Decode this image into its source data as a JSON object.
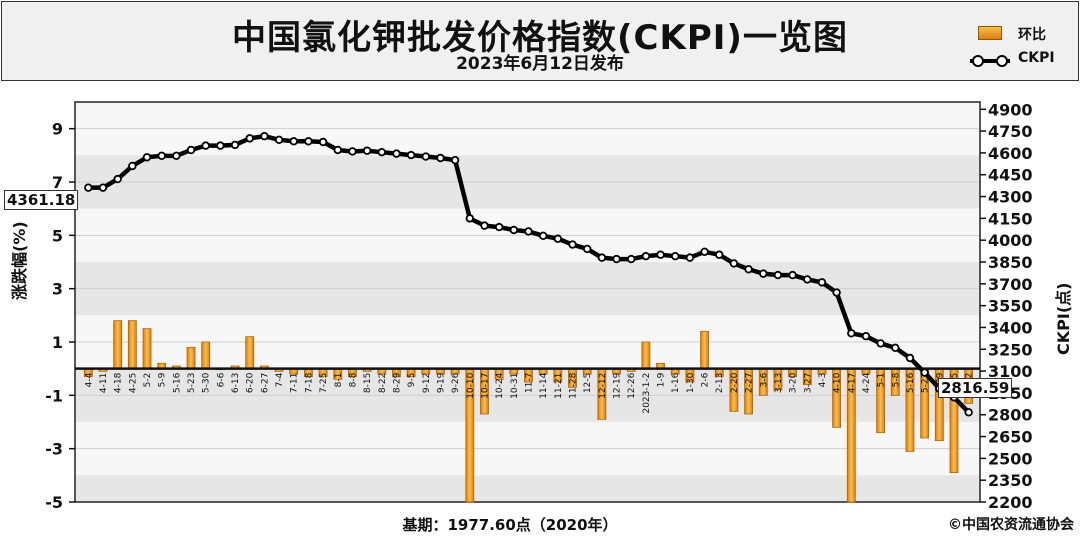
{
  "header": {
    "title": "中国氯化钾批发价格指数(CKPI)一览图",
    "subtitle": "2023年6月12日发布",
    "legend": {
      "bar_label": "环比",
      "line_label": "CKPI"
    }
  },
  "footer": {
    "base_note": "基期：1977.60点（2020年）",
    "copyright": "©中国农资流通协会"
  },
  "callouts": {
    "start_value": "4361.18",
    "end_value": "2816.59"
  },
  "chart_data": {
    "type": "bar+line",
    "left_axis": {
      "label": "涨跌幅(%)",
      "ylim": [
        -5,
        10
      ],
      "ticks": [
        9,
        7,
        5,
        3,
        1,
        -1,
        -3,
        -5
      ]
    },
    "right_axis": {
      "label": "CKPI(点)",
      "ylim": [
        2200,
        4950
      ],
      "ticks": [
        4900,
        4750,
        4600,
        4450,
        4300,
        4150,
        4000,
        3850,
        3700,
        3550,
        3400,
        3250,
        3100,
        2950,
        2800,
        2650,
        2500,
        2350,
        2200
      ]
    },
    "categories": [
      "4-4",
      "4-11",
      "4-18",
      "4-25",
      "5-2",
      "5-9",
      "5-16",
      "5-23",
      "5-30",
      "6-6",
      "6-13",
      "6-20",
      "6-27",
      "7-4",
      "7-11",
      "7-18",
      "7-25",
      "8-1",
      "8-8",
      "8-15",
      "8-22",
      "8-29",
      "9-5",
      "9-12",
      "9-19",
      "9-26",
      "10-10",
      "10-17",
      "10-24",
      "10-31",
      "11-7",
      "11-14",
      "11-21",
      "11-28",
      "12-5",
      "12-12",
      "12-19",
      "12-26",
      "2023-1-2",
      "1-9",
      "1-16",
      "1-30",
      "2-6",
      "2-13",
      "2-20",
      "2-27",
      "3-6",
      "3-13",
      "3-20",
      "3-27",
      "4-3",
      "4-10",
      "4-17",
      "4-24",
      "5-1",
      "5-8",
      "5-16",
      "5-22",
      "5-29",
      "6-5",
      "6-12"
    ],
    "series": [
      {
        "name": "环比",
        "type": "bar",
        "values": [
          -0.3,
          -0.1,
          1.8,
          1.8,
          1.5,
          0.2,
          0.1,
          0.8,
          1.0,
          0.0,
          0.1,
          1.2,
          0.1,
          -0.1,
          -0.2,
          -0.3,
          -0.3,
          -0.4,
          -0.3,
          -0.1,
          -0.2,
          -0.3,
          -0.3,
          -0.2,
          -0.2,
          -0.2,
          -5.0,
          -1.7,
          -0.4,
          -0.2,
          -0.5,
          -0.2,
          -0.5,
          -0.7,
          -0.2,
          -1.9,
          -0.2,
          -0.1,
          1.0,
          0.2,
          -0.2,
          -0.5,
          1.4,
          -0.3,
          -1.6,
          -1.7,
          -1.0,
          -0.8,
          -0.3,
          -0.6,
          -0.2,
          -2.2,
          -5.0,
          -0.2,
          -2.4,
          -1.0,
          -3.1,
          -2.6,
          -2.7,
          -3.9,
          -1.3
        ]
      },
      {
        "name": "CKPI",
        "type": "line",
        "values": [
          4361,
          4361,
          4420,
          4510,
          4570,
          4580,
          4580,
          4620,
          4650,
          4650,
          4655,
          4700,
          4715,
          4690,
          4680,
          4680,
          4675,
          4620,
          4610,
          4615,
          4605,
          4595,
          4585,
          4575,
          4565,
          4550,
          4150,
          4100,
          4090,
          4070,
          4060,
          4030,
          4010,
          3970,
          3940,
          3880,
          3870,
          3870,
          3890,
          3900,
          3890,
          3880,
          3920,
          3900,
          3840,
          3800,
          3770,
          3760,
          3760,
          3730,
          3710,
          3640,
          3360,
          3340,
          3290,
          3260,
          3190,
          3090,
          2980,
          2920,
          2816.59
        ]
      }
    ],
    "grid": "horizontal",
    "legend_position": "top-right"
  },
  "colors": {
    "bar_top": "#f7c14b",
    "bar_bottom": "#e07a12",
    "bar_stroke": "#b36200",
    "line": "#000000",
    "band_dark": "#e6e6e6",
    "band_light": "#f7f7f7"
  }
}
